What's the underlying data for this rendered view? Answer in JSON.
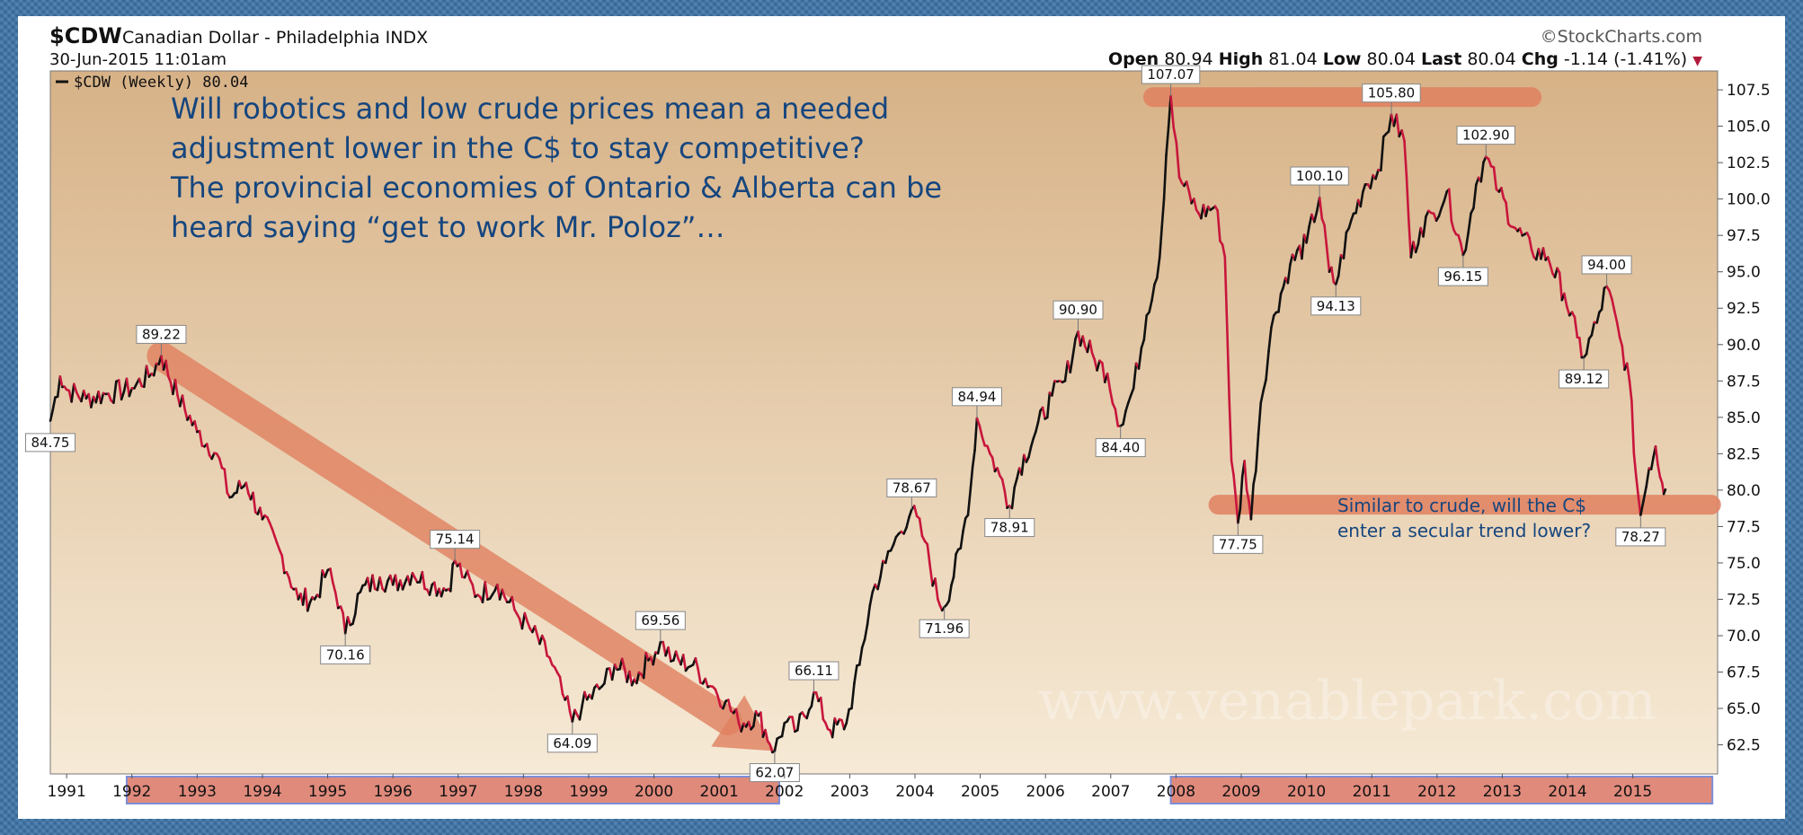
{
  "header": {
    "symbol": "$CDW",
    "name": "Canadian Dollar - Philadelphia INDX",
    "source": "©StockCharts.com",
    "date": "30-Jun-2015 11:01am",
    "ohlc": {
      "open_label": "Open",
      "open": "80.94",
      "high_label": "High",
      "high": "81.04",
      "low_label": "Low",
      "low": "80.04",
      "last_label": "Last",
      "last": "80.04",
      "chg_label": "Chg",
      "chg": "-1.14 (-1.41%)"
    }
  },
  "legend_label": "$CDW (Weekly) 80.04",
  "annotations": {
    "main_text": [
      "Will robotics and low crude prices mean a needed",
      "adjustment lower in the C$ to stay competitive?",
      "The provincial economies of Ontario & Alberta can be",
      "heard saying “get to work Mr. Poloz”…"
    ],
    "side_text": [
      "Similar to crude, will the C$",
      "enter a secular trend lower?"
    ],
    "watermark": "www.venablepark.com"
  },
  "colors": {
    "plot_bg_top": "#d7b287",
    "plot_bg_bottom": "#f6ead6",
    "price_down": "#c8163c",
    "price_up": "#111111",
    "overlay": "#e0805f",
    "annotation_text": "#16467e",
    "year_highlight": "#e08a7c",
    "year_highlight_border": "#7d8fd6"
  },
  "chart_data": {
    "type": "line",
    "title": "$CDW Canadian Dollar - Philadelphia INDX",
    "series": [
      {
        "name": "$CDW (Weekly)",
        "points": [
          [
            1990.75,
            84.75
          ],
          [
            1990.9,
            87.8
          ],
          [
            1991.0,
            86.9
          ],
          [
            1991.3,
            86.3
          ],
          [
            1991.6,
            86.6
          ],
          [
            1992.0,
            87.0
          ],
          [
            1992.3,
            88.0
          ],
          [
            1992.45,
            89.22
          ],
          [
            1992.7,
            86.5
          ],
          [
            1993.0,
            84.0
          ],
          [
            1993.3,
            82.5
          ],
          [
            1993.5,
            79.5
          ],
          [
            1993.75,
            80.5
          ],
          [
            1994.0,
            78.0
          ],
          [
            1994.3,
            75.5
          ],
          [
            1994.55,
            72.5
          ],
          [
            1994.8,
            72.5
          ],
          [
            1995.0,
            74.5
          ],
          [
            1995.2,
            72.0
          ],
          [
            1995.27,
            70.16
          ],
          [
            1995.5,
            73.0
          ],
          [
            1995.8,
            74.0
          ],
          [
            1996.0,
            73.5
          ],
          [
            1996.3,
            74.3
          ],
          [
            1996.6,
            73.5
          ],
          [
            1996.85,
            73.2
          ],
          [
            1996.95,
            75.14
          ],
          [
            1997.1,
            74.0
          ],
          [
            1997.3,
            72.8
          ],
          [
            1997.6,
            73.5
          ],
          [
            1997.9,
            71.5
          ],
          [
            1998.1,
            70.5
          ],
          [
            1998.4,
            68.5
          ],
          [
            1998.6,
            66.0
          ],
          [
            1998.75,
            64.09
          ],
          [
            1998.9,
            65.2
          ],
          [
            1999.2,
            66.5
          ],
          [
            1999.4,
            68.0
          ],
          [
            1999.7,
            67.0
          ],
          [
            1999.95,
            68.5
          ],
          [
            2000.1,
            69.56
          ],
          [
            2000.3,
            68.3
          ],
          [
            2000.6,
            68.0
          ],
          [
            2000.9,
            66.5
          ],
          [
            2001.1,
            65.5
          ],
          [
            2001.3,
            64.0
          ],
          [
            2001.6,
            64.5
          ],
          [
            2001.85,
            62.07
          ],
          [
            2002.0,
            64.0
          ],
          [
            2002.2,
            63.5
          ],
          [
            2002.45,
            66.11
          ],
          [
            2002.7,
            63.5
          ],
          [
            2002.95,
            64.0
          ],
          [
            2003.15,
            68.0
          ],
          [
            2003.35,
            73.0
          ],
          [
            2003.55,
            75.0
          ],
          [
            2003.75,
            77.0
          ],
          [
            2003.95,
            78.67
          ],
          [
            2004.15,
            76.5
          ],
          [
            2004.35,
            72.5
          ],
          [
            2004.45,
            71.96
          ],
          [
            2004.7,
            76.0
          ],
          [
            2004.85,
            80.0
          ],
          [
            2004.95,
            84.94
          ],
          [
            2005.15,
            82.5
          ],
          [
            2005.3,
            81.0
          ],
          [
            2005.45,
            78.91
          ],
          [
            2005.6,
            81.5
          ],
          [
            2005.85,
            84.0
          ],
          [
            2006.1,
            86.5
          ],
          [
            2006.3,
            87.5
          ],
          [
            2006.5,
            90.9
          ],
          [
            2006.75,
            89.0
          ],
          [
            2006.95,
            88.0
          ],
          [
            2007.15,
            84.4
          ],
          [
            2007.35,
            87.0
          ],
          [
            2007.55,
            92.0
          ],
          [
            2007.75,
            96.0
          ],
          [
            2007.85,
            103.0
          ],
          [
            2007.92,
            107.07
          ],
          [
            2008.05,
            101.5
          ],
          [
            2008.35,
            99.0
          ],
          [
            2008.6,
            99.5
          ],
          [
            2008.75,
            96.0
          ],
          [
            2008.85,
            82.0
          ],
          [
            2008.95,
            77.75
          ],
          [
            2009.05,
            82.0
          ],
          [
            2009.15,
            78.0
          ],
          [
            2009.3,
            86.0
          ],
          [
            2009.5,
            92.0
          ],
          [
            2009.75,
            95.5
          ],
          [
            2010.0,
            97.0
          ],
          [
            2010.2,
            100.1
          ],
          [
            2010.35,
            95.0
          ],
          [
            2010.45,
            94.13
          ],
          [
            2010.65,
            98.0
          ],
          [
            2010.9,
            101.0
          ],
          [
            2011.1,
            102.0
          ],
          [
            2011.3,
            105.8
          ],
          [
            2011.5,
            104.0
          ],
          [
            2011.6,
            96.0
          ],
          [
            2011.75,
            98.0
          ],
          [
            2011.95,
            99.0
          ],
          [
            2012.15,
            100.5
          ],
          [
            2012.4,
            96.15
          ],
          [
            2012.6,
            101.0
          ],
          [
            2012.75,
            102.9
          ],
          [
            2012.95,
            100.5
          ],
          [
            2013.2,
            98.0
          ],
          [
            2013.45,
            96.5
          ],
          [
            2013.7,
            96.0
          ],
          [
            2013.95,
            93.5
          ],
          [
            2014.15,
            90.5
          ],
          [
            2014.25,
            89.12
          ],
          [
            2014.45,
            91.5
          ],
          [
            2014.6,
            94.0
          ],
          [
            2014.8,
            90.5
          ],
          [
            2014.95,
            87.5
          ],
          [
            2015.05,
            81.0
          ],
          [
            2015.12,
            78.27
          ],
          [
            2015.25,
            81.5
          ],
          [
            2015.35,
            83.0
          ],
          [
            2015.45,
            80.5
          ],
          [
            2015.5,
            80.04
          ]
        ]
      }
    ],
    "data_labels": [
      {
        "x": 1990.75,
        "y": 84.75,
        "text": "84.75",
        "pos": "below"
      },
      {
        "x": 1992.45,
        "y": 89.22,
        "text": "89.22",
        "pos": "above"
      },
      {
        "x": 1995.27,
        "y": 70.16,
        "text": "70.16",
        "pos": "below"
      },
      {
        "x": 1996.95,
        "y": 75.14,
        "text": "75.14",
        "pos": "above"
      },
      {
        "x": 1998.75,
        "y": 64.09,
        "text": "64.09",
        "pos": "below"
      },
      {
        "x": 2000.1,
        "y": 69.56,
        "text": "69.56",
        "pos": "above"
      },
      {
        "x": 2001.85,
        "y": 62.07,
        "text": "62.07",
        "pos": "below"
      },
      {
        "x": 2002.45,
        "y": 66.11,
        "text": "66.11",
        "pos": "above"
      },
      {
        "x": 2003.95,
        "y": 78.67,
        "text": "78.67",
        "pos": "above"
      },
      {
        "x": 2004.45,
        "y": 71.96,
        "text": "71.96",
        "pos": "below"
      },
      {
        "x": 2004.95,
        "y": 84.94,
        "text": "84.94",
        "pos": "above"
      },
      {
        "x": 2005.45,
        "y": 78.91,
        "text": "78.91",
        "pos": "below"
      },
      {
        "x": 2006.5,
        "y": 90.9,
        "text": "90.90",
        "pos": "above"
      },
      {
        "x": 2007.15,
        "y": 84.4,
        "text": "84.40",
        "pos": "below"
      },
      {
        "x": 2007.92,
        "y": 107.07,
        "text": "107.07",
        "pos": "above"
      },
      {
        "x": 2008.95,
        "y": 77.75,
        "text": "77.75",
        "pos": "below"
      },
      {
        "x": 2010.2,
        "y": 100.1,
        "text": "100.10",
        "pos": "above"
      },
      {
        "x": 2010.45,
        "y": 94.13,
        "text": "94.13",
        "pos": "below"
      },
      {
        "x": 2011.3,
        "y": 105.8,
        "text": "105.80",
        "pos": "above"
      },
      {
        "x": 2012.4,
        "y": 96.15,
        "text": "96.15",
        "pos": "below"
      },
      {
        "x": 2012.75,
        "y": 102.9,
        "text": "102.90",
        "pos": "above"
      },
      {
        "x": 2014.25,
        "y": 89.12,
        "text": "89.12",
        "pos": "below"
      },
      {
        "x": 2014.6,
        "y": 94.0,
        "text": "94.00",
        "pos": "above"
      },
      {
        "x": 2015.12,
        "y": 78.27,
        "text": "78.27",
        "pos": "below"
      }
    ],
    "trend_overlays": [
      {
        "from": [
          1992.45,
          89.22
        ],
        "to": [
          2001.85,
          62.07
        ],
        "kind": "arrow"
      },
      {
        "from": [
          2007.65,
          107.0
        ],
        "to": [
          2013.45,
          107.0
        ],
        "kind": "band"
      },
      {
        "from": [
          2008.65,
          79.0
        ],
        "to": [
          2016.2,
          79.0
        ],
        "kind": "band"
      }
    ],
    "x_ticks": [
      "1991",
      "1992",
      "1993",
      "1994",
      "1995",
      "1996",
      "1997",
      "1998",
      "1999",
      "2000",
      "2001",
      "2002",
      "2003",
      "2004",
      "2005",
      "2006",
      "2007",
      "2008",
      "2009",
      "2010",
      "2011",
      "2012",
      "2013",
      "2014",
      "2015"
    ],
    "y_ticks": [
      "62.5",
      "65.0",
      "67.5",
      "70.0",
      "72.5",
      "75.0",
      "77.5",
      "80.0",
      "82.5",
      "85.0",
      "87.5",
      "90.0",
      "92.5",
      "95.0",
      "97.5",
      "100.0",
      "102.5",
      "105.0",
      "107.5"
    ],
    "xlim": [
      1990.75,
      2016.3
    ],
    "ylim": [
      60.5,
      108.8
    ],
    "highlighted_year_ranges": [
      [
        1992,
        2002
      ],
      [
        2008,
        2016.3
      ]
    ],
    "y_axis_side": "right",
    "grid": false
  }
}
